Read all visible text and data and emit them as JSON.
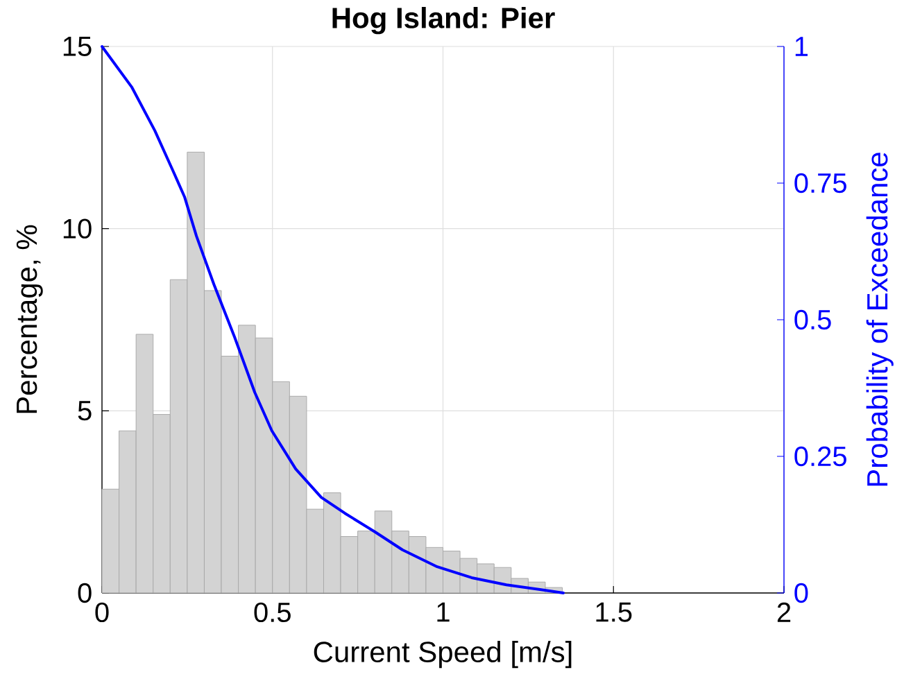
{
  "chart_data": {
    "type": "histogram",
    "title": "Hog Island: Pier",
    "xlabel": "Current Speed [m/s]",
    "ylabel": "Percentage, %",
    "y2label": "Probability of Exceedance",
    "xlim": [
      0,
      2
    ],
    "xticks": [
      0,
      0.5,
      1,
      1.5,
      2
    ],
    "ylim": [
      0,
      15
    ],
    "yticks": [
      0,
      5,
      10,
      15
    ],
    "y2lim": [
      0,
      1
    ],
    "y2ticks": [
      0,
      0.25,
      0.5,
      0.75,
      1
    ],
    "grid": true,
    "series": [
      {
        "type": "histogram",
        "color": "#d3d3d3",
        "bins": [
          0,
          0.05,
          0.1,
          0.15,
          0.2,
          0.25,
          0.3,
          0.35,
          0.4,
          0.45,
          0.5,
          0.55,
          0.6,
          0.65,
          0.7,
          0.75,
          0.8,
          0.85,
          0.9,
          0.95,
          1,
          1.05,
          1.1,
          1.15,
          1.2,
          1.25,
          1.3,
          1.35
        ],
        "values": [
          2.85,
          4.45,
          7.1,
          4.9,
          8.6,
          12.1,
          8.3,
          6.5,
          7.35,
          7.0,
          5.8,
          5.4,
          2.3,
          2.75,
          1.55,
          1.7,
          2.25,
          1.7,
          1.55,
          1.25,
          1.15,
          0.95,
          0.8,
          0.7,
          0.4,
          0.3,
          0.15
        ]
      },
      {
        "type": "line",
        "axis": "y2",
        "color": "#0000ff",
        "x": [
          0,
          0.087,
          0.155,
          0.21,
          0.242,
          0.277,
          0.328,
          0.389,
          0.448,
          0.498,
          0.568,
          0.643,
          0.712,
          0.8,
          0.881,
          0.983,
          1.084,
          1.186,
          1.288,
          1.353
        ],
        "values": [
          1.0,
          0.926,
          0.846,
          0.77,
          0.725,
          0.653,
          0.565,
          0.468,
          0.367,
          0.297,
          0.227,
          0.175,
          0.146,
          0.112,
          0.079,
          0.048,
          0.028,
          0.015,
          0.006,
          0.0
        ]
      }
    ]
  }
}
